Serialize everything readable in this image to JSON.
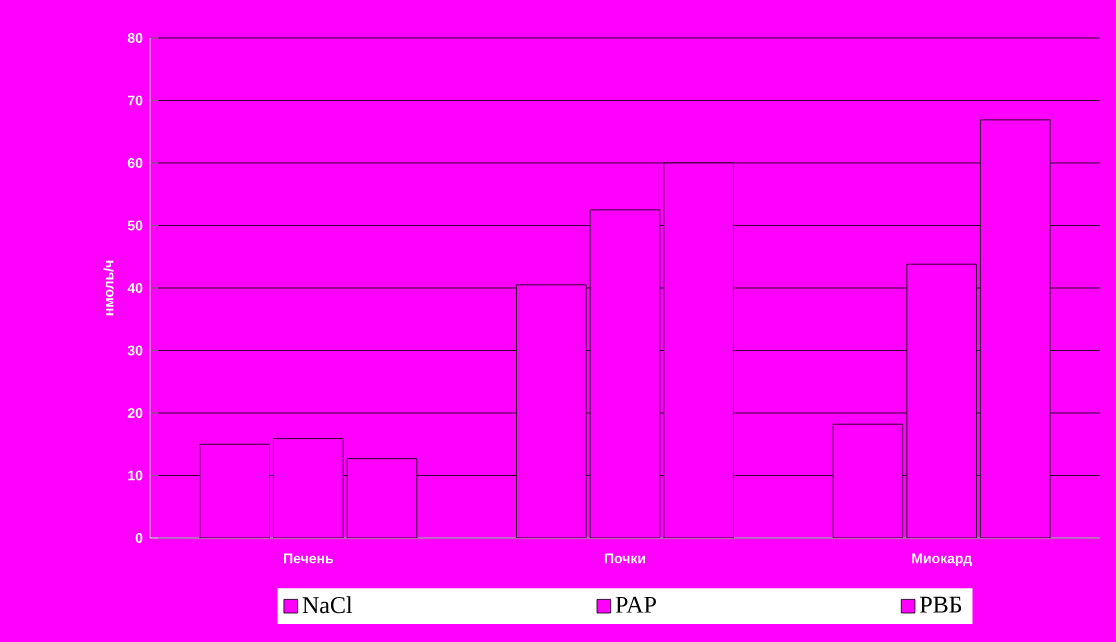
{
  "chart_data": {
    "type": "bar",
    "ylabel": "нмоль/ч",
    "categories": [
      "Печень",
      "Почки",
      "Миокард"
    ],
    "series": [
      {
        "name": "NaCl",
        "color": "#ff00ff",
        "values": [
          15,
          40.5,
          18.2
        ]
      },
      {
        "name": "PAP",
        "color": "#ff00ff",
        "values": [
          15.9,
          52.5,
          43.8
        ]
      },
      {
        "name": "РВБ",
        "color": "#ff00ff",
        "values": [
          12.7,
          60,
          66.9
        ]
      }
    ],
    "ylim": [
      0,
      80
    ],
    "yticks": [
      0,
      10,
      20,
      30,
      40,
      50,
      60,
      70,
      80
    ],
    "grid": "y",
    "legend": "bottom"
  }
}
